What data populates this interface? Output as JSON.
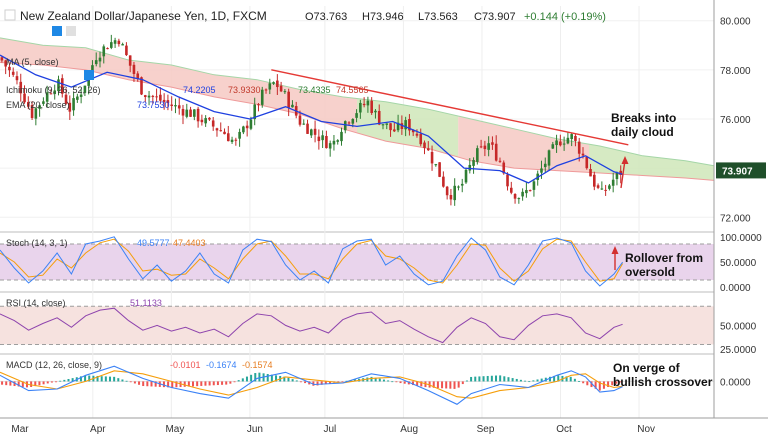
{
  "header": {
    "symbol": "New Zealand Dollar/Japanese Yen, 1D, FXCM",
    "open": "O73.763",
    "high": "H73.946",
    "low": "L73.563",
    "close": "C73.907",
    "change": "+0.144 (+0.19%)"
  },
  "colors": {
    "up": "#2e7d32",
    "down": "#c62828",
    "trendline": "#e53935",
    "ema": "#1e40e0",
    "cloud_bull": "#cfe6b9",
    "cloud_bear": "#f6c9c3",
    "stoch_k": "#3b82f6",
    "stoch_d": "#f59e0b",
    "rsi": "#8e44ad",
    "macd": "#3b82f6",
    "signal": "#f59e0b",
    "hist_pos": "#26a69a",
    "hist_neg": "#ef5350",
    "price_badge": "#1f4f2a"
  },
  "overlay_labels": {
    "ma": "MA (5, close)",
    "ichimoku": "Ichimoku (9, 26, 52, 26)",
    "ichimoku_values": [
      "74.2205",
      "73.9330",
      "73.4335",
      "74.5565"
    ],
    "ema": "EMA (20, close)",
    "ema_value": "73.7530"
  },
  "annotations": {
    "cloud": [
      "Breaks into",
      "daily cloud"
    ],
    "stoch": [
      "Rollover from",
      "oversold"
    ],
    "macd": [
      "On verge of",
      "bullish crossover"
    ]
  },
  "chart_data": [
    {
      "type": "candlestick",
      "pane": "price",
      "x_ticks": [
        "Mar",
        "Apr",
        "May",
        "Jun",
        "Jul",
        "Aug",
        "Sep",
        "Oct",
        "Nov"
      ],
      "ylim": [
        71.4,
        80.6
      ],
      "y_ticks": [
        "72.000",
        "74.000",
        "76.000",
        "78.000",
        "80.000"
      ],
      "last_price": "73.907",
      "trendline": [
        [
          78.0,
          0.38
        ],
        [
          74.95,
          0.88
        ]
      ],
      "close_path": [
        [
          0.0,
          78.5
        ],
        [
          0.026,
          77.4
        ],
        [
          0.045,
          76.2
        ],
        [
          0.062,
          76.9
        ],
        [
          0.08,
          77.5
        ],
        [
          0.098,
          76.4
        ],
        [
          0.115,
          77.2
        ],
        [
          0.135,
          78.6
        ],
        [
          0.15,
          79.0
        ],
        [
          0.166,
          79.3
        ],
        [
          0.182,
          78.2
        ],
        [
          0.2,
          77.1
        ],
        [
          0.222,
          76.8
        ],
        [
          0.245,
          76.5
        ],
        [
          0.27,
          76.2
        ],
        [
          0.292,
          75.8
        ],
        [
          0.312,
          75.5
        ],
        [
          0.33,
          75.0
        ],
        [
          0.348,
          75.9
        ],
        [
          0.368,
          77.0
        ],
        [
          0.385,
          77.5
        ],
        [
          0.4,
          76.9
        ],
        [
          0.42,
          75.9
        ],
        [
          0.445,
          75.3
        ],
        [
          0.465,
          74.9
        ],
        [
          0.48,
          75.8
        ],
        [
          0.498,
          76.3
        ],
        [
          0.515,
          76.7
        ],
        [
          0.53,
          76.0
        ],
        [
          0.55,
          75.5
        ],
        [
          0.57,
          75.8
        ],
        [
          0.59,
          75.2
        ],
        [
          0.612,
          74.0
        ],
        [
          0.628,
          72.9
        ],
        [
          0.645,
          73.2
        ],
        [
          0.665,
          74.5
        ],
        [
          0.685,
          75.0
        ],
        [
          0.7,
          74.3
        ],
        [
          0.715,
          73.1
        ],
        [
          0.73,
          72.8
        ],
        [
          0.748,
          73.4
        ],
        [
          0.765,
          74.3
        ],
        [
          0.782,
          75.1
        ],
        [
          0.8,
          75.3
        ],
        [
          0.815,
          74.6
        ],
        [
          0.83,
          73.5
        ],
        [
          0.842,
          72.9
        ],
        [
          0.858,
          73.5
        ],
        [
          0.872,
          73.91
        ]
      ],
      "ema_path": [
        [
          0.0,
          78.6
        ],
        [
          0.05,
          77.8
        ],
        [
          0.1,
          77.3
        ],
        [
          0.15,
          77.9
        ],
        [
          0.2,
          77.6
        ],
        [
          0.25,
          76.9
        ],
        [
          0.3,
          76.3
        ],
        [
          0.35,
          76.0
        ],
        [
          0.4,
          76.5
        ],
        [
          0.45,
          75.9
        ],
        [
          0.5,
          75.7
        ],
        [
          0.55,
          75.9
        ],
        [
          0.6,
          75.3
        ],
        [
          0.65,
          74.0
        ],
        [
          0.7,
          73.9
        ],
        [
          0.74,
          73.4
        ],
        [
          0.78,
          74.1
        ],
        [
          0.82,
          74.5
        ],
        [
          0.86,
          73.85
        ],
        [
          0.872,
          73.75
        ]
      ],
      "cloud_top": [
        [
          0.0,
          79.3
        ],
        [
          0.06,
          79.0
        ],
        [
          0.12,
          78.9
        ],
        [
          0.18,
          78.4
        ],
        [
          0.24,
          78.2
        ],
        [
          0.3,
          77.8
        ],
        [
          0.36,
          77.6
        ],
        [
          0.42,
          77.2
        ],
        [
          0.48,
          76.9
        ],
        [
          0.54,
          76.7
        ],
        [
          0.6,
          76.4
        ],
        [
          0.66,
          76.0
        ],
        [
          0.72,
          75.6
        ],
        [
          0.78,
          75.2
        ],
        [
          0.84,
          74.9
        ],
        [
          0.9,
          74.5
        ],
        [
          0.96,
          74.3
        ],
        [
          1.0,
          74.1
        ]
      ],
      "cloud_bottom": [
        [
          0.0,
          78.3
        ],
        [
          0.06,
          78.2
        ],
        [
          0.12,
          78.0
        ],
        [
          0.18,
          77.6
        ],
        [
          0.24,
          77.3
        ],
        [
          0.3,
          76.9
        ],
        [
          0.36,
          76.6
        ],
        [
          0.42,
          76.2
        ],
        [
          0.48,
          75.6
        ],
        [
          0.54,
          75.1
        ],
        [
          0.6,
          74.8
        ],
        [
          0.66,
          74.3
        ],
        [
          0.72,
          74.0
        ],
        [
          0.78,
          73.9
        ],
        [
          0.84,
          73.8
        ],
        [
          0.9,
          73.7
        ],
        [
          0.96,
          73.6
        ],
        [
          1.0,
          73.5
        ]
      ],
      "cloud_bull_x": [
        [
          0.5,
          0.64
        ],
        [
          0.82,
          1.0
        ]
      ]
    },
    {
      "type": "line",
      "pane": "stoch",
      "title": "Stoch (14, 3, 1)",
      "values_text": [
        "49.5777",
        "47.4403"
      ],
      "ylim": [
        0,
        100
      ],
      "y_ticks": [
        "0.0000",
        "50.0000",
        "100.0000"
      ],
      "band": [
        20,
        80
      ],
      "k": [
        [
          0.0,
          70
        ],
        [
          0.02,
          40
        ],
        [
          0.04,
          15
        ],
        [
          0.06,
          35
        ],
        [
          0.08,
          65
        ],
        [
          0.1,
          30
        ],
        [
          0.12,
          80
        ],
        [
          0.14,
          85
        ],
        [
          0.16,
          92
        ],
        [
          0.18,
          55
        ],
        [
          0.2,
          22
        ],
        [
          0.22,
          45
        ],
        [
          0.24,
          18
        ],
        [
          0.26,
          35
        ],
        [
          0.28,
          65
        ],
        [
          0.3,
          30
        ],
        [
          0.32,
          15
        ],
        [
          0.34,
          70
        ],
        [
          0.36,
          88
        ],
        [
          0.38,
          84
        ],
        [
          0.4,
          45
        ],
        [
          0.42,
          20
        ],
        [
          0.44,
          35
        ],
        [
          0.46,
          15
        ],
        [
          0.48,
          72
        ],
        [
          0.5,
          85
        ],
        [
          0.52,
          88
        ],
        [
          0.54,
          45
        ],
        [
          0.56,
          60
        ],
        [
          0.58,
          30
        ],
        [
          0.6,
          12
        ],
        [
          0.62,
          18
        ],
        [
          0.64,
          60
        ],
        [
          0.66,
          90
        ],
        [
          0.68,
          70
        ],
        [
          0.7,
          25
        ],
        [
          0.72,
          12
        ],
        [
          0.74,
          45
        ],
        [
          0.76,
          85
        ],
        [
          0.78,
          90
        ],
        [
          0.8,
          82
        ],
        [
          0.82,
          35
        ],
        [
          0.84,
          10
        ],
        [
          0.86,
          30
        ],
        [
          0.872,
          49.6
        ]
      ],
      "d": [
        [
          0.0,
          65
        ],
        [
          0.02,
          50
        ],
        [
          0.04,
          25
        ],
        [
          0.06,
          28
        ],
        [
          0.08,
          55
        ],
        [
          0.1,
          40
        ],
        [
          0.12,
          65
        ],
        [
          0.14,
          82
        ],
        [
          0.16,
          88
        ],
        [
          0.18,
          68
        ],
        [
          0.2,
          35
        ],
        [
          0.22,
          38
        ],
        [
          0.24,
          28
        ],
        [
          0.26,
          30
        ],
        [
          0.28,
          55
        ],
        [
          0.3,
          40
        ],
        [
          0.32,
          22
        ],
        [
          0.34,
          55
        ],
        [
          0.36,
          80
        ],
        [
          0.38,
          85
        ],
        [
          0.4,
          60
        ],
        [
          0.42,
          30
        ],
        [
          0.44,
          30
        ],
        [
          0.46,
          22
        ],
        [
          0.48,
          55
        ],
        [
          0.5,
          80
        ],
        [
          0.52,
          86
        ],
        [
          0.54,
          60
        ],
        [
          0.56,
          55
        ],
        [
          0.58,
          40
        ],
        [
          0.6,
          20
        ],
        [
          0.62,
          15
        ],
        [
          0.64,
          45
        ],
        [
          0.66,
          80
        ],
        [
          0.68,
          78
        ],
        [
          0.7,
          40
        ],
        [
          0.72,
          18
        ],
        [
          0.74,
          35
        ],
        [
          0.76,
          72
        ],
        [
          0.78,
          88
        ],
        [
          0.8,
          85
        ],
        [
          0.82,
          50
        ],
        [
          0.84,
          18
        ],
        [
          0.86,
          22
        ],
        [
          0.872,
          47.4
        ]
      ]
    },
    {
      "type": "line",
      "pane": "rsi",
      "title": "RSI (14, close)",
      "values_text": [
        "51.1133"
      ],
      "ylim": [
        20,
        85
      ],
      "y_ticks": [
        "25.0000",
        "50.0000"
      ],
      "band": [
        30,
        70
      ],
      "rsi": [
        [
          0.0,
          62
        ],
        [
          0.02,
          55
        ],
        [
          0.04,
          45
        ],
        [
          0.06,
          52
        ],
        [
          0.08,
          58
        ],
        [
          0.1,
          48
        ],
        [
          0.12,
          60
        ],
        [
          0.14,
          66
        ],
        [
          0.16,
          68
        ],
        [
          0.18,
          55
        ],
        [
          0.2,
          45
        ],
        [
          0.22,
          50
        ],
        [
          0.24,
          44
        ],
        [
          0.26,
          48
        ],
        [
          0.28,
          42
        ],
        [
          0.3,
          46
        ],
        [
          0.32,
          38
        ],
        [
          0.34,
          52
        ],
        [
          0.36,
          62
        ],
        [
          0.38,
          60
        ],
        [
          0.4,
          50
        ],
        [
          0.42,
          44
        ],
        [
          0.44,
          48
        ],
        [
          0.46,
          42
        ],
        [
          0.48,
          56
        ],
        [
          0.5,
          62
        ],
        [
          0.52,
          64
        ],
        [
          0.54,
          52
        ],
        [
          0.56,
          55
        ],
        [
          0.58,
          46
        ],
        [
          0.6,
          38
        ],
        [
          0.62,
          32
        ],
        [
          0.64,
          48
        ],
        [
          0.66,
          58
        ],
        [
          0.68,
          52
        ],
        [
          0.7,
          38
        ],
        [
          0.72,
          35
        ],
        [
          0.74,
          50
        ],
        [
          0.76,
          60
        ],
        [
          0.78,
          62
        ],
        [
          0.8,
          58
        ],
        [
          0.82,
          42
        ],
        [
          0.84,
          36
        ],
        [
          0.86,
          48
        ],
        [
          0.872,
          51.1
        ]
      ]
    },
    {
      "type": "line",
      "pane": "macd",
      "title": "MACD (12, 26, close, 9)",
      "values_text": [
        "-0.0101",
        "-0.1674",
        "-0.1574"
      ],
      "ylim": [
        -1.2,
        0.9
      ],
      "y_ticks": [
        "0.0000"
      ],
      "macd": [
        [
          0.0,
          0.2
        ],
        [
          0.04,
          -0.3
        ],
        [
          0.08,
          -0.25
        ],
        [
          0.12,
          0.2
        ],
        [
          0.16,
          0.5
        ],
        [
          0.2,
          0.1
        ],
        [
          0.24,
          -0.2
        ],
        [
          0.28,
          -0.4
        ],
        [
          0.32,
          -0.55
        ],
        [
          0.36,
          0.1
        ],
        [
          0.4,
          0.3
        ],
        [
          0.44,
          -0.1
        ],
        [
          0.48,
          -0.05
        ],
        [
          0.52,
          0.25
        ],
        [
          0.56,
          0.1
        ],
        [
          0.6,
          -0.3
        ],
        [
          0.64,
          -0.75
        ],
        [
          0.66,
          -0.4
        ],
        [
          0.7,
          -0.1
        ],
        [
          0.74,
          -0.2
        ],
        [
          0.78,
          0.2
        ],
        [
          0.8,
          0.35
        ],
        [
          0.82,
          0.15
        ],
        [
          0.84,
          -0.35
        ],
        [
          0.86,
          -0.3
        ],
        [
          0.872,
          -0.17
        ]
      ],
      "signal": [
        [
          0.0,
          0.3
        ],
        [
          0.04,
          -0.1
        ],
        [
          0.08,
          -0.25
        ],
        [
          0.12,
          0.0
        ],
        [
          0.16,
          0.35
        ],
        [
          0.2,
          0.25
        ],
        [
          0.24,
          0.0
        ],
        [
          0.28,
          -0.25
        ],
        [
          0.32,
          -0.45
        ],
        [
          0.36,
          -0.2
        ],
        [
          0.4,
          0.15
        ],
        [
          0.44,
          0.05
        ],
        [
          0.48,
          -0.05
        ],
        [
          0.52,
          0.1
        ],
        [
          0.56,
          0.15
        ],
        [
          0.6,
          -0.1
        ],
        [
          0.64,
          -0.5
        ],
        [
          0.66,
          -0.55
        ],
        [
          0.7,
          -0.3
        ],
        [
          0.74,
          -0.2
        ],
        [
          0.78,
          0.0
        ],
        [
          0.8,
          0.2
        ],
        [
          0.82,
          0.25
        ],
        [
          0.84,
          -0.05
        ],
        [
          0.86,
          -0.2
        ],
        [
          0.872,
          -0.16
        ]
      ]
    }
  ]
}
